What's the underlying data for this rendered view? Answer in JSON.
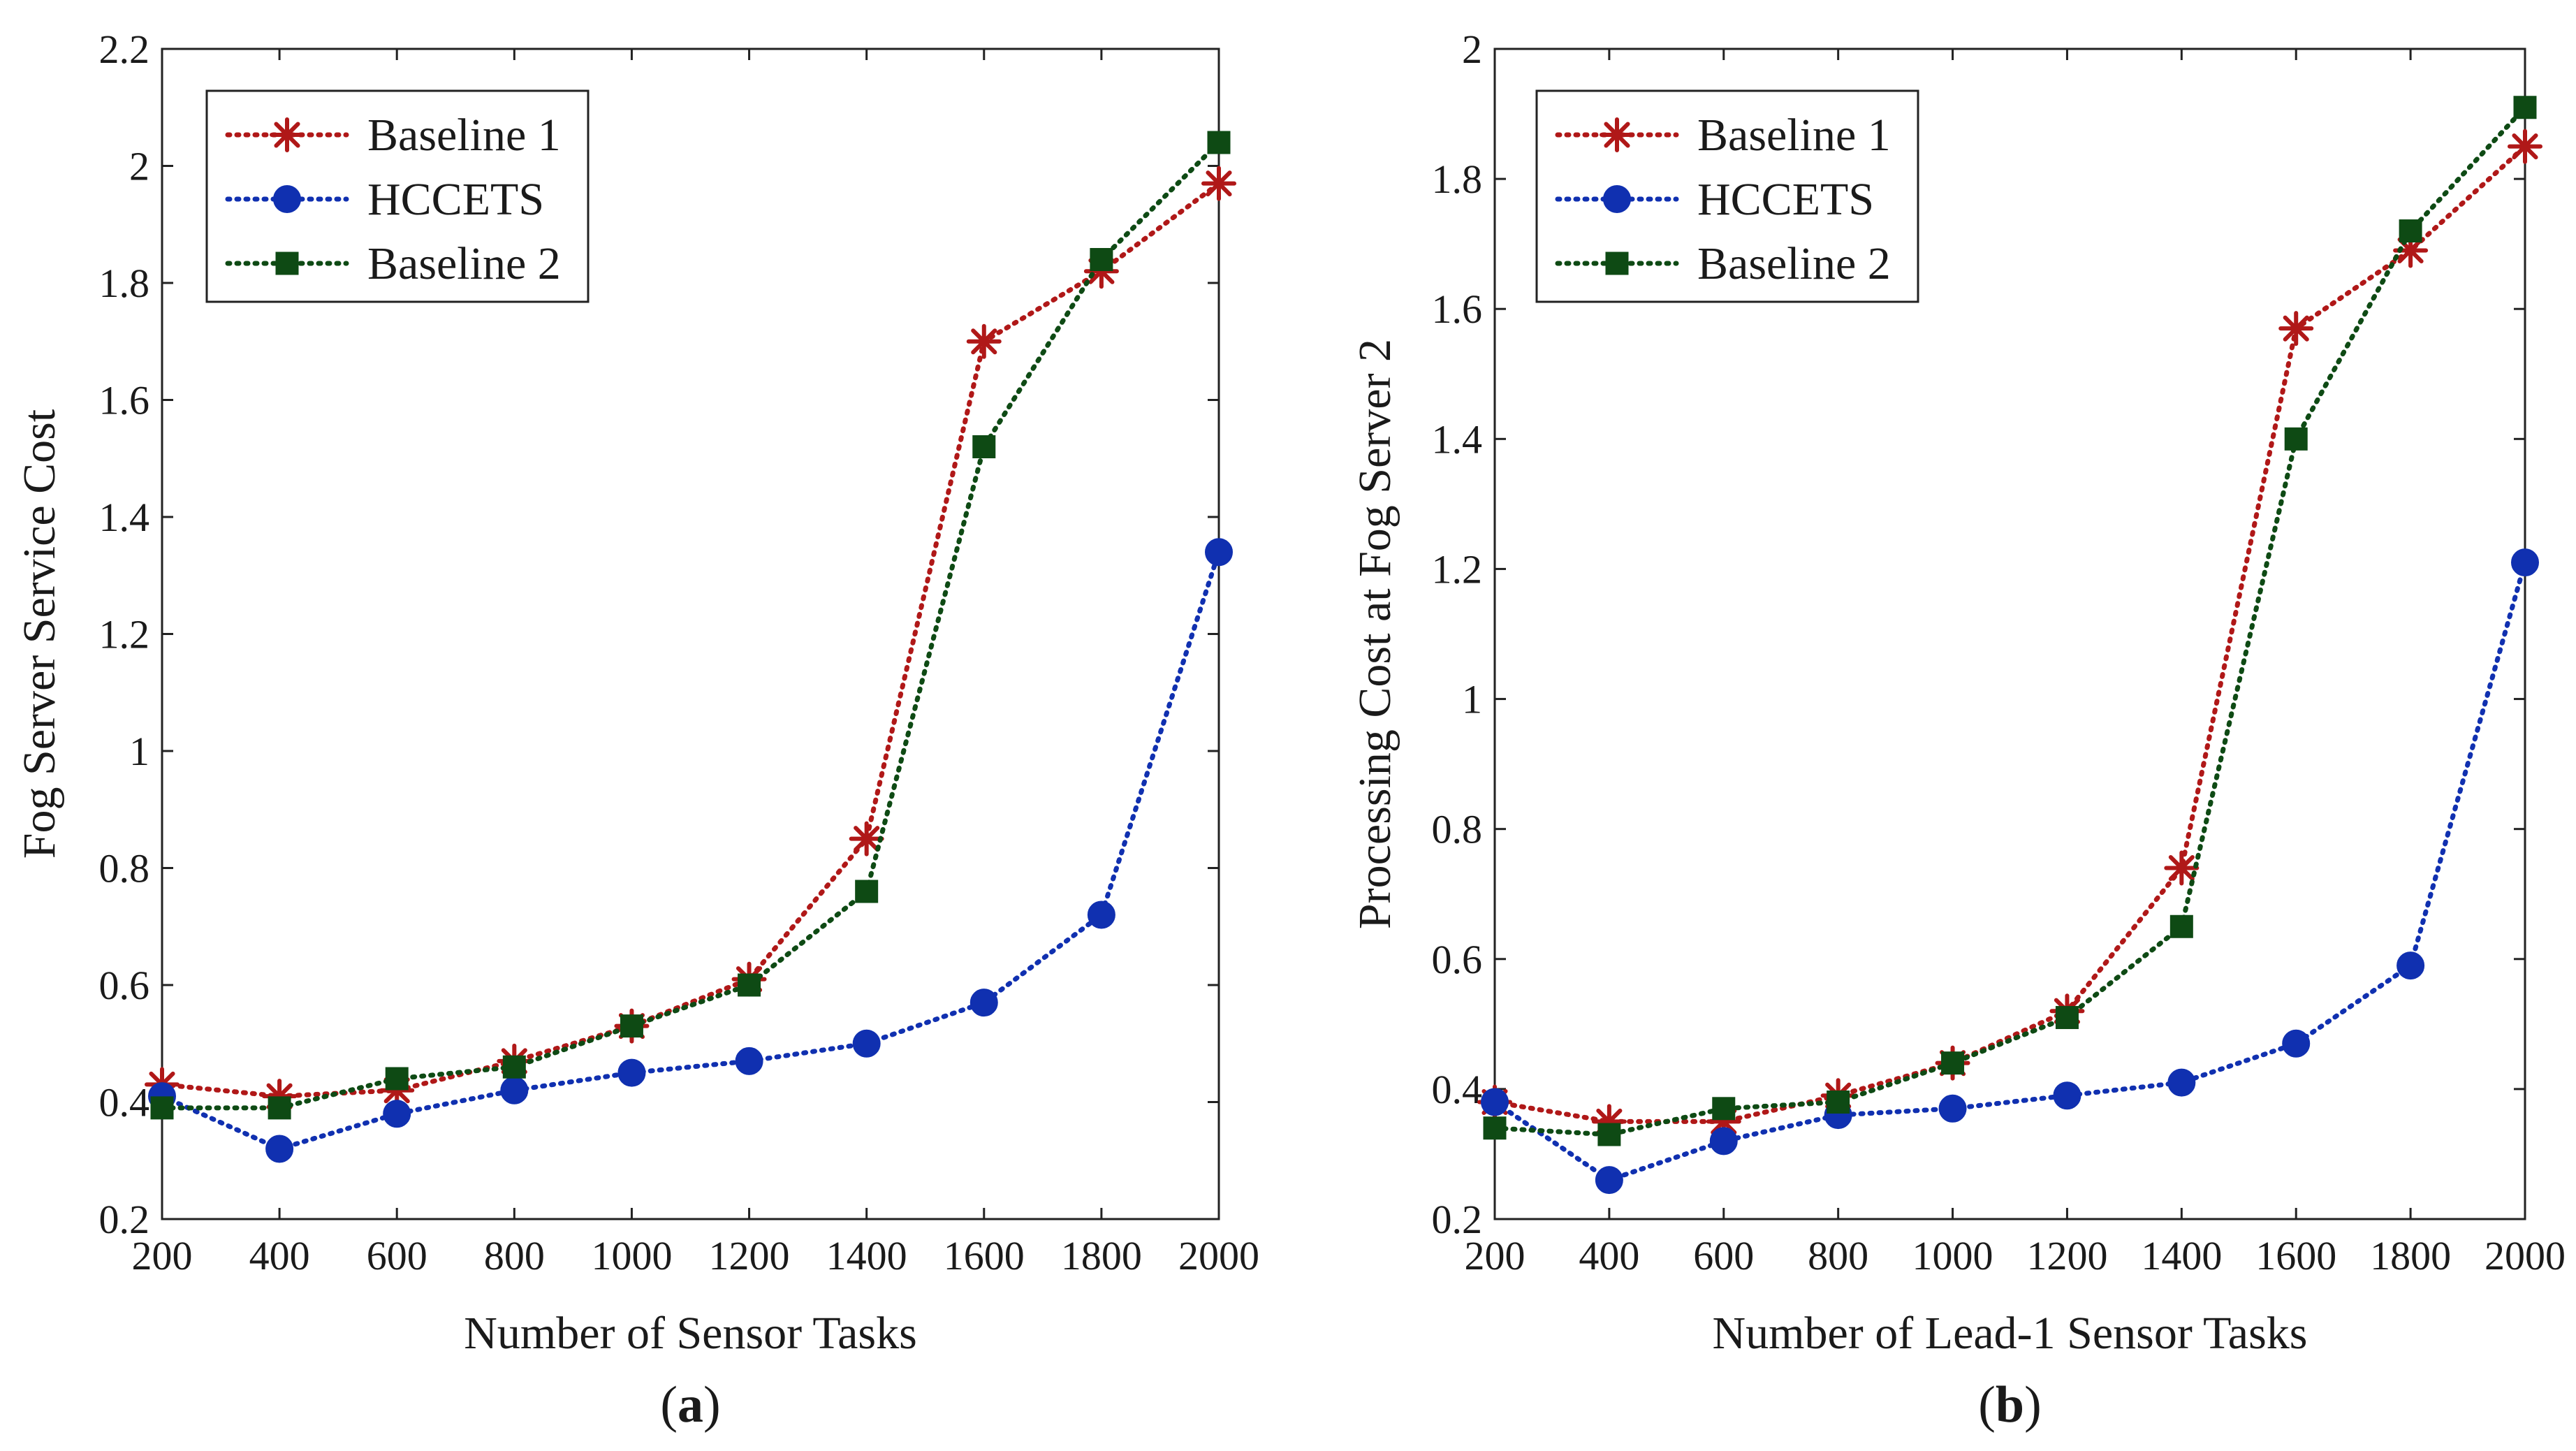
{
  "chart_data": [
    {
      "type": "line",
      "panel_label": "a",
      "x": [
        200,
        400,
        600,
        800,
        1000,
        1200,
        1400,
        1600,
        1800,
        2000
      ],
      "xlabel": "Number of Sensor Tasks",
      "ylabel": "Fog Server Service Cost",
      "xlim": [
        200,
        2000
      ],
      "ylim": [
        0.2,
        2.2
      ],
      "xticks": [
        "200",
        "400",
        "600",
        "800",
        "1000",
        "1200",
        "1400",
        "1600",
        "1800",
        "2000"
      ],
      "yticks": [
        "0.2",
        "0.4",
        "0.6",
        "0.8",
        "1",
        "1.2",
        "1.4",
        "1.6",
        "1.8",
        "2",
        "2.2"
      ],
      "grid": false,
      "legend_position": "top-left",
      "series": [
        {
          "name": "Baseline 1",
          "marker": "asterisk",
          "color": "#b01818",
          "values": [
            0.43,
            0.41,
            0.42,
            0.47,
            0.53,
            0.61,
            0.85,
            1.7,
            1.82,
            1.97
          ]
        },
        {
          "name": "HCCETS",
          "marker": "circle",
          "color": "#1030b0",
          "values": [
            0.41,
            0.32,
            0.38,
            0.42,
            0.45,
            0.47,
            0.5,
            0.57,
            0.72,
            1.34
          ]
        },
        {
          "name": "Baseline 2",
          "marker": "square",
          "color": "#0e4a14",
          "values": [
            0.39,
            0.39,
            0.44,
            0.46,
            0.53,
            0.6,
            0.76,
            1.52,
            1.84,
            2.04
          ]
        }
      ]
    },
    {
      "type": "line",
      "panel_label": "b",
      "x": [
        200,
        400,
        600,
        800,
        1000,
        1200,
        1400,
        1600,
        1800,
        2000
      ],
      "xlabel": "Number of Lead-1 Sensor Tasks",
      "ylabel": "Processing Cost at Fog Server 2",
      "xlim": [
        200,
        2000
      ],
      "ylim": [
        0.2,
        2.0
      ],
      "xticks": [
        "200",
        "400",
        "600",
        "800",
        "1000",
        "1200",
        "1400",
        "1600",
        "1800",
        "2000"
      ],
      "yticks": [
        "0.2",
        "0.4",
        "0.6",
        "0.8",
        "1",
        "1.2",
        "1.4",
        "1.6",
        "1.8",
        "2"
      ],
      "grid": false,
      "legend_position": "top-left",
      "series": [
        {
          "name": "Baseline 1",
          "marker": "asterisk",
          "color": "#b01818",
          "values": [
            0.38,
            0.35,
            0.35,
            0.39,
            0.44,
            0.52,
            0.74,
            1.57,
            1.69,
            1.85
          ]
        },
        {
          "name": "HCCETS",
          "marker": "circle",
          "color": "#1030b0",
          "values": [
            0.38,
            0.26,
            0.32,
            0.36,
            0.37,
            0.39,
            0.41,
            0.47,
            0.59,
            1.21
          ]
        },
        {
          "name": "Baseline 2",
          "marker": "square",
          "color": "#0e4a14",
          "values": [
            0.34,
            0.33,
            0.37,
            0.38,
            0.44,
            0.51,
            0.65,
            1.4,
            1.72,
            1.91
          ]
        }
      ]
    }
  ]
}
